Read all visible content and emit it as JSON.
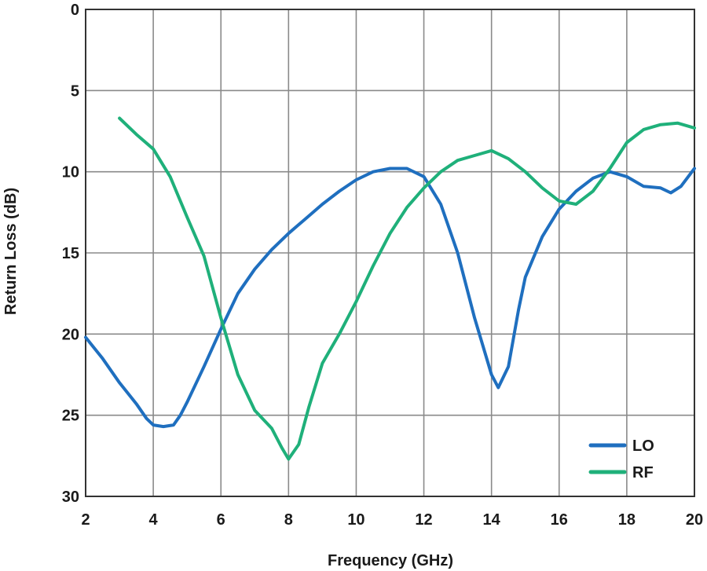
{
  "chart_data": {
    "type": "line",
    "title": "",
    "xlabel": "Frequency (GHz)",
    "ylabel": "Return Loss (dB)",
    "xlim": [
      2,
      20
    ],
    "ylim": [
      0,
      30
    ],
    "y_inverted": true,
    "xticks": [
      2,
      4,
      6,
      8,
      10,
      12,
      14,
      16,
      18,
      20
    ],
    "yticks": [
      0,
      5,
      10,
      15,
      20,
      25,
      30
    ],
    "grid": true,
    "legend_position": "bottom-right",
    "series": [
      {
        "name": "LO",
        "color": "#1f6fbf",
        "x": [
          2.0,
          2.5,
          3.0,
          3.5,
          3.8,
          4.0,
          4.3,
          4.6,
          4.8,
          5.0,
          5.5,
          6.0,
          6.5,
          7.0,
          7.5,
          8.0,
          8.5,
          9.0,
          9.5,
          10.0,
          10.5,
          11.0,
          11.5,
          12.0,
          12.5,
          13.0,
          13.5,
          14.0,
          14.2,
          14.5,
          14.8,
          15.0,
          15.5,
          16.0,
          16.5,
          17.0,
          17.5,
          18.0,
          18.5,
          19.0,
          19.3,
          19.6,
          20.0
        ],
        "y": [
          20.2,
          21.5,
          23.0,
          24.3,
          25.2,
          25.6,
          25.7,
          25.6,
          25.0,
          24.2,
          22.0,
          19.7,
          17.5,
          16.0,
          14.8,
          13.8,
          12.9,
          12.0,
          11.2,
          10.5,
          10.0,
          9.8,
          9.8,
          10.3,
          12.0,
          15.0,
          19.0,
          22.5,
          23.3,
          22.0,
          18.5,
          16.5,
          14.0,
          12.3,
          11.2,
          10.4,
          10.0,
          10.3,
          10.9,
          11.0,
          11.3,
          10.9,
          9.8
        ]
      },
      {
        "name": "RF",
        "color": "#1fb07a",
        "x": [
          3.0,
          3.5,
          4.0,
          4.5,
          5.0,
          5.5,
          6.0,
          6.5,
          7.0,
          7.5,
          7.8,
          8.0,
          8.3,
          8.6,
          9.0,
          9.5,
          10.0,
          10.5,
          11.0,
          11.5,
          12.0,
          12.5,
          13.0,
          13.5,
          14.0,
          14.5,
          15.0,
          15.5,
          16.0,
          16.5,
          17.0,
          17.5,
          18.0,
          18.5,
          19.0,
          19.5,
          20.0
        ],
        "y": [
          6.7,
          7.7,
          8.6,
          10.3,
          12.8,
          15.2,
          19.0,
          22.5,
          24.7,
          25.8,
          27.0,
          27.7,
          26.8,
          24.5,
          21.8,
          20.0,
          18.0,
          15.8,
          13.8,
          12.2,
          11.0,
          10.0,
          9.3,
          9.0,
          8.7,
          9.2,
          10.0,
          11.0,
          11.8,
          12.0,
          11.2,
          9.8,
          8.2,
          7.4,
          7.1,
          7.0,
          7.3
        ]
      }
    ]
  }
}
